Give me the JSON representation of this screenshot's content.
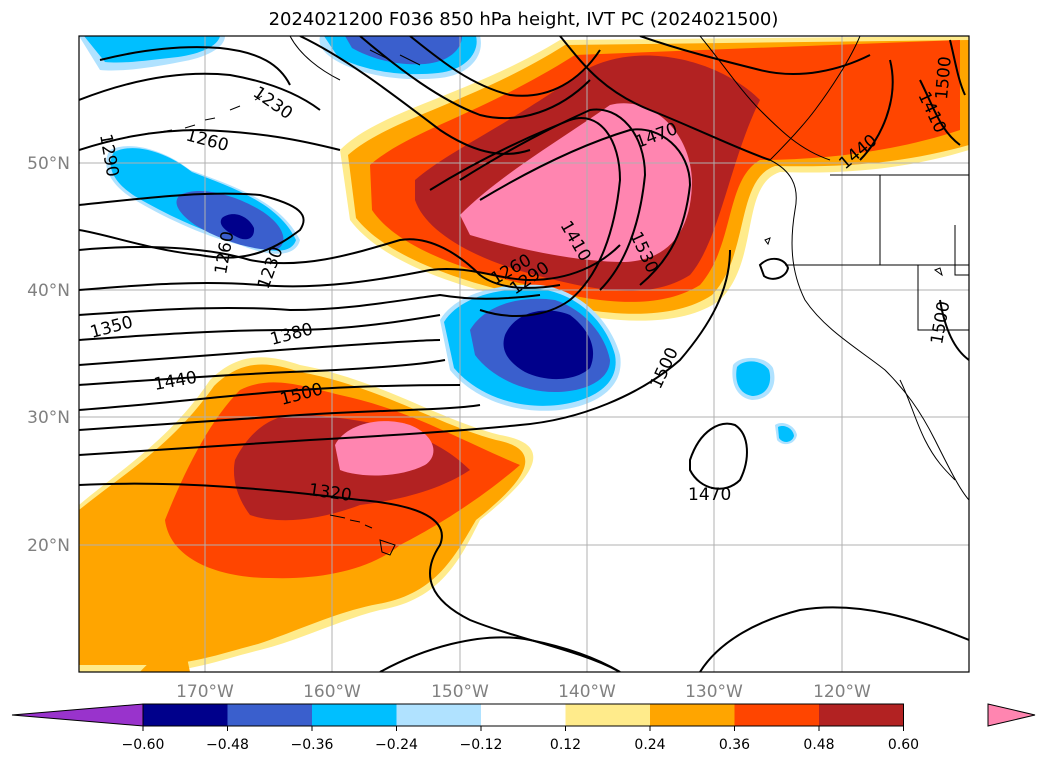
{
  "title": "2024021200 F036 850 hPa height, IVT PC (2024021500)",
  "latitude_labels": [
    "50°N",
    "40°N",
    "30°N",
    "20°N"
  ],
  "longitude_labels": [
    "170°W",
    "160°W",
    "150°W",
    "140°W",
    "130°W",
    "120°W"
  ],
  "contour_labels": [
    "1290",
    "1260",
    "1230",
    "1260",
    "1230",
    "1260",
    "1290",
    "1350",
    "1380",
    "1440",
    "1500",
    "1320",
    "1410",
    "1530",
    "1470",
    "1500",
    "1470",
    "1440",
    "1410",
    "1500",
    "1500"
  ],
  "colorbar": {
    "tick_labels": [
      "−0.60",
      "−0.48",
      "−0.36",
      "−0.24",
      "−0.12",
      "0.12",
      "0.24",
      "0.36",
      "0.48",
      "0.60"
    ],
    "colors": [
      "#9933cc",
      "#00008b",
      "#3a5fcd",
      "#00bfff",
      "#b0e2ff",
      "#ffffff",
      "#ffeb8b",
      "#ffa500",
      "#ff4500",
      "#b22222",
      "#ff85b0"
    ]
  }
}
